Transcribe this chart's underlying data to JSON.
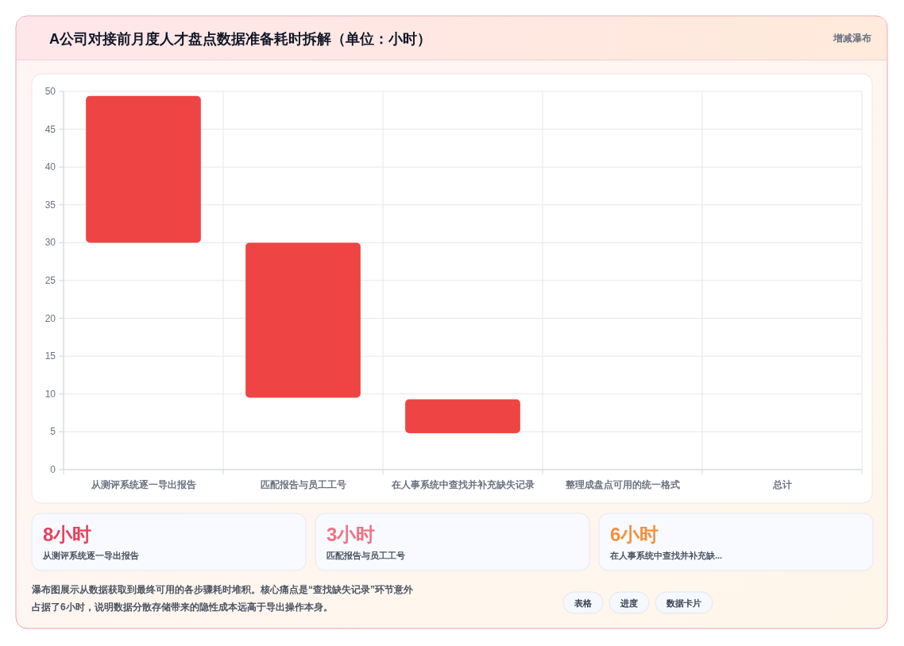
{
  "chart_data": [
    {
      "type": "bar",
      "title": "A公司对接前月度人才盘点数据准备耗时拆解（单位：小时）",
      "categories": [
        "从测评系统逐一导出报告",
        "匹配报告与员工工号",
        "在人事系统中查找并补充缺失记录",
        "整理成盘点可用的统一格式",
        "总计"
      ],
      "base": [
        30,
        9.5,
        4.8,
        null,
        null
      ],
      "values": [
        19.4,
        20.5,
        4.5,
        null,
        null
      ],
      "color": "#ef4444",
      "ylim": [
        0,
        50
      ],
      "yticks": [
        0,
        5,
        10,
        15,
        20,
        25,
        30,
        35,
        40,
        45,
        50
      ],
      "grid": true,
      "annotations": [
        "增减瀑布"
      ]
    },
    {
      "type": "other",
      "annotations": [
        "8小时",
        "从测评系统逐一导出报告",
        "3小时",
        "匹配报告与员工工号",
        "6小时",
        "在人事系统中查找并补充缺...",
        "瀑布图展示从数据获取到最终可用的各步骤耗时堆积。核心痛点是“查找缺失记录”环节意外占据了6小时，说明数据分散存储带来的隐性成本远高于导出操作本身。",
        "表格",
        "进度",
        "数据卡片"
      ]
    }
  ]
}
